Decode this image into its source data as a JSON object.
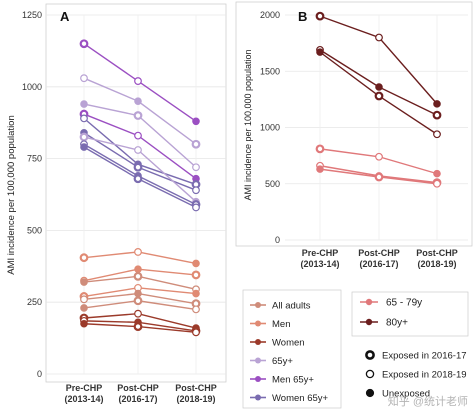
{
  "chart_data": [
    {
      "type": "line",
      "panel_label": "A",
      "ylabel": "AMI incidence per 100,000 population",
      "categories": [
        "Pre-CHP\n(2013-14)",
        "Post-CHP\n(2016-17)",
        "Post-CHP\n(2018-19)"
      ],
      "y_ticks": [
        "0",
        "250",
        "500",
        "750",
        "1000",
        "1250"
      ],
      "ylim": [
        0,
        1250
      ],
      "grid": true,
      "series": [
        {
          "group": "Men 65y+",
          "color": "#9b4fc2",
          "values": [
            1150,
            1020,
            880
          ]
        },
        {
          "group": "65y+",
          "color": "#b9a3d4",
          "values": [
            1030,
            950,
            800
          ]
        },
        {
          "group": "65y+",
          "color": "#b9a3d4",
          "values": [
            940,
            900,
            720
          ]
        },
        {
          "group": "Men 65y+",
          "color": "#9b4fc2",
          "values": [
            905,
            830,
            680
          ]
        },
        {
          "group": "Women 65y+",
          "color": "#7a6cb0",
          "values": [
            890,
            730,
            660
          ]
        },
        {
          "group": "Women 65y+",
          "color": "#7a6cb0",
          "values": [
            840,
            720,
            640
          ]
        },
        {
          "group": "65y+",
          "color": "#b9a3d4",
          "values": [
            825,
            780,
            600
          ]
        },
        {
          "group": "Women 65y+",
          "color": "#7a6cb0",
          "values": [
            800,
            690,
            590
          ]
        },
        {
          "group": "Women 65y+",
          "color": "#7a6cb0",
          "values": [
            790,
            680,
            580
          ]
        },
        {
          "group": "Men",
          "color": "#e08a73",
          "values": [
            405,
            425,
            385
          ]
        },
        {
          "group": "Men",
          "color": "#e08a73",
          "values": [
            325,
            365,
            345
          ]
        },
        {
          "group": "All adults",
          "color": "#cf8c7a",
          "values": [
            320,
            340,
            295
          ]
        },
        {
          "group": "Men",
          "color": "#e08a73",
          "values": [
            270,
            300,
            280
          ]
        },
        {
          "group": "All adults",
          "color": "#cf8c7a",
          "values": [
            260,
            280,
            245
          ]
        },
        {
          "group": "All adults",
          "color": "#cf8c7a",
          "values": [
            230,
            255,
            225
          ]
        },
        {
          "group": "Women",
          "color": "#9b3a2a",
          "values": [
            195,
            210,
            160
          ]
        },
        {
          "group": "Women",
          "color": "#9b3a2a",
          "values": [
            185,
            180,
            150
          ]
        },
        {
          "group": "Women",
          "color": "#9b3a2a",
          "values": [
            175,
            165,
            145
          ]
        }
      ]
    },
    {
      "type": "line",
      "panel_label": "B",
      "ylabel": "AMI incidence per 100,000 population",
      "categories": [
        "Pre-CHP\n(2013-14)",
        "Post-CHP\n(2016-17)",
        "Post-CHP\n(2018-19)"
      ],
      "y_ticks": [
        "0",
        "500",
        "1000",
        "1500",
        "2000"
      ],
      "ylim": [
        0,
        2000
      ],
      "grid": true,
      "series": [
        {
          "group": "80y+",
          "color": "#6b1e1e",
          "values": [
            1990,
            1800,
            1210
          ]
        },
        {
          "group": "80y+",
          "color": "#6b1e1e",
          "values": [
            1690,
            1360,
            1110
          ]
        },
        {
          "group": "80y+",
          "color": "#6b1e1e",
          "values": [
            1670,
            1280,
            940
          ]
        },
        {
          "group": "65 - 79y",
          "color": "#e0787a",
          "values": [
            810,
            740,
            590
          ]
        },
        {
          "group": "65 - 79y",
          "color": "#e0787a",
          "values": [
            660,
            570,
            510
          ]
        },
        {
          "group": "65 - 79y",
          "color": "#e0787a",
          "values": [
            630,
            560,
            500
          ]
        }
      ]
    }
  ],
  "legend_a": [
    {
      "label": "All adults",
      "color": "#cf8c7a"
    },
    {
      "label": "Men",
      "color": "#e08a73"
    },
    {
      "label": "Women",
      "color": "#9b3a2a"
    },
    {
      "label": "65y+",
      "color": "#b9a3d4"
    },
    {
      "label": "Men 65y+",
      "color": "#9b4fc2"
    },
    {
      "label": "Women 65y+",
      "color": "#7a6cb0"
    }
  ],
  "legend_b": [
    {
      "label": "65 - 79y",
      "color": "#e0787a"
    },
    {
      "label": "80y+",
      "color": "#6b1e1e"
    }
  ],
  "legend_markers": [
    {
      "label": "Exposed in 2016-17",
      "marker": "thick-ring"
    },
    {
      "label": "Exposed in 2018-19",
      "marker": "thin-ring"
    },
    {
      "label": "Unexposed",
      "marker": "filled-dot"
    }
  ],
  "watermark": "知乎 @统计老师"
}
